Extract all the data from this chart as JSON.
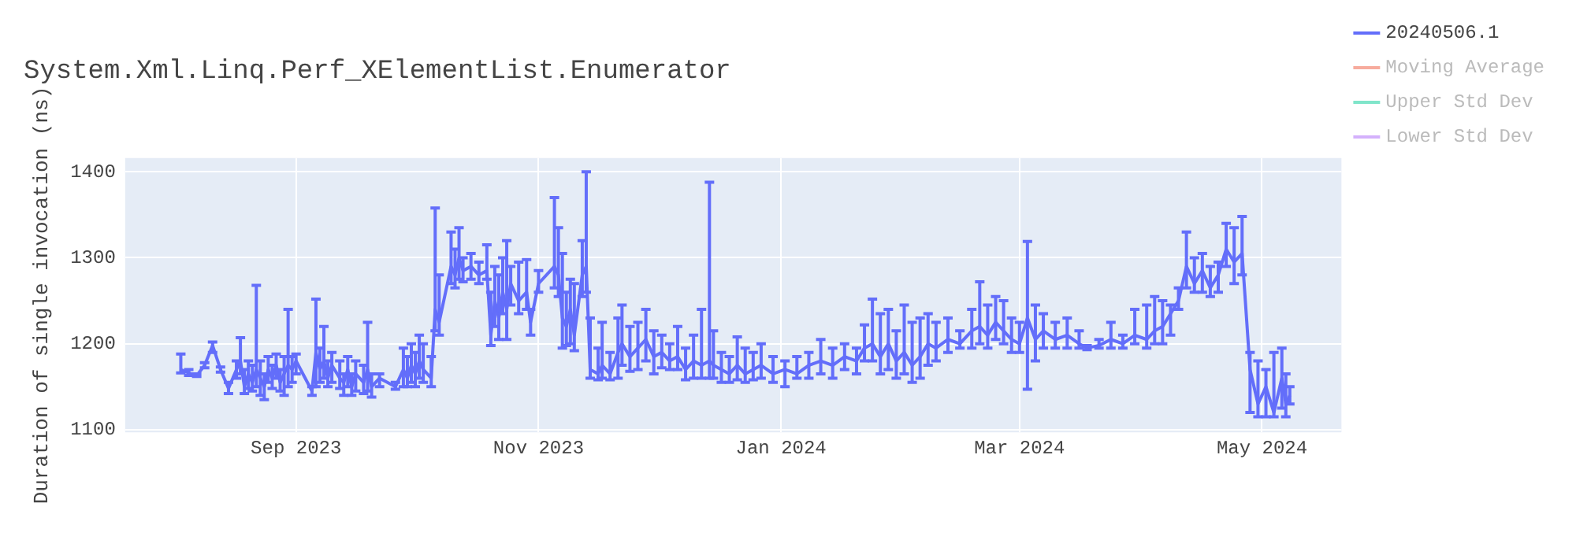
{
  "chart_data": {
    "type": "line",
    "title": "System.Xml.Linq.Perf_XElementList.Enumerator",
    "ylabel": "Duration of single invocation (ns)",
    "x": [
      "2023-08-03",
      "2023-08-05",
      "2023-08-07",
      "2023-08-09",
      "2023-08-11",
      "2023-08-13",
      "2023-08-15",
      "2023-08-17",
      "2023-08-18",
      "2023-08-19",
      "2023-08-20",
      "2023-08-21",
      "2023-08-22",
      "2023-08-23",
      "2023-08-24",
      "2023-08-25",
      "2023-08-26",
      "2023-08-27",
      "2023-08-28",
      "2023-08-29",
      "2023-08-30",
      "2023-08-31",
      "2023-09-01",
      "2023-09-05",
      "2023-09-06",
      "2023-09-07",
      "2023-09-08",
      "2023-09-09",
      "2023-09-10",
      "2023-09-12",
      "2023-09-13",
      "2023-09-14",
      "2023-09-15",
      "2023-09-16",
      "2023-09-18",
      "2023-09-19",
      "2023-09-20",
      "2023-09-22",
      "2023-09-26",
      "2023-09-28",
      "2023-09-29",
      "2023-09-30",
      "2023-10-01",
      "2023-10-02",
      "2023-10-03",
      "2023-10-05",
      "2023-10-06",
      "2023-10-07",
      "2023-10-10",
      "2023-10-11",
      "2023-10-12",
      "2023-10-13",
      "2023-10-15",
      "2023-10-17",
      "2023-10-19",
      "2023-10-20",
      "2023-10-21",
      "2023-10-22",
      "2023-10-23",
      "2023-10-24",
      "2023-10-25",
      "2023-10-27",
      "2023-10-29",
      "2023-10-30",
      "2023-11-01",
      "2023-11-05",
      "2023-11-06",
      "2023-11-07",
      "2023-11-08",
      "2023-11-09",
      "2023-11-10",
      "2023-11-12",
      "2023-11-13",
      "2023-11-14",
      "2023-11-16",
      "2023-11-17",
      "2023-11-19",
      "2023-11-21",
      "2023-11-22",
      "2023-11-24",
      "2023-11-26",
      "2023-11-28",
      "2023-11-30",
      "2023-12-02",
      "2023-12-04",
      "2023-12-06",
      "2023-12-08",
      "2023-12-10",
      "2023-12-12",
      "2023-12-14",
      "2023-12-15",
      "2023-12-17",
      "2023-12-19",
      "2023-12-21",
      "2023-12-23",
      "2023-12-25",
      "2023-12-27",
      "2023-12-30",
      "2024-01-02",
      "2024-01-05",
      "2024-01-08",
      "2024-01-11",
      "2024-01-14",
      "2024-01-17",
      "2024-01-20",
      "2024-01-22",
      "2024-01-24",
      "2024-01-26",
      "2024-01-28",
      "2024-01-30",
      "2024-02-01",
      "2024-02-03",
      "2024-02-05",
      "2024-02-07",
      "2024-02-09",
      "2024-02-12",
      "2024-02-15",
      "2024-02-18",
      "2024-02-20",
      "2024-02-22",
      "2024-02-24",
      "2024-02-26",
      "2024-02-28",
      "2024-03-01",
      "2024-03-03",
      "2024-03-05",
      "2024-03-07",
      "2024-03-10",
      "2024-03-13",
      "2024-03-16",
      "2024-03-18",
      "2024-03-21",
      "2024-03-24",
      "2024-03-27",
      "2024-03-30",
      "2024-04-02",
      "2024-04-04",
      "2024-04-06",
      "2024-04-08",
      "2024-04-10",
      "2024-04-12",
      "2024-04-14",
      "2024-04-16",
      "2024-04-18",
      "2024-04-20",
      "2024-04-22",
      "2024-04-24",
      "2024-04-26",
      "2024-04-28",
      "2024-04-30",
      "2024-05-02",
      "2024-05-04",
      "2024-05-06",
      "2024-05-07",
      "2024-05-08"
    ],
    "series": [
      {
        "name": "20240506.1",
        "color": "#636efa",
        "values": [
          1170,
          1166,
          1163,
          1175,
          1198,
          1170,
          1148,
          1170,
          1180,
          1150,
          1165,
          1155,
          1170,
          1160,
          1150,
          1170,
          1160,
          1175,
          1155,
          1165,
          1175,
          1170,
          1180,
          1145,
          1190,
          1170,
          1180,
          1160,
          1175,
          1160,
          1155,
          1170,
          1150,
          1165,
          1155,
          1170,
          1150,
          1160,
          1150,
          1170,
          1160,
          1175,
          1165,
          1180,
          1170,
          1160,
          1240,
          1225,
          1290,
          1280,
          1300,
          1285,
          1290,
          1280,
          1285,
          1210,
          1250,
          1230,
          1260,
          1240,
          1270,
          1250,
          1260,
          1225,
          1270,
          1290,
          1280,
          1230,
          1220,
          1240,
          1210,
          1280,
          1290,
          1170,
          1165,
          1175,
          1165,
          1190,
          1200,
          1185,
          1195,
          1205,
          1185,
          1190,
          1180,
          1185,
          1170,
          1180,
          1175,
          1180,
          1175,
          1170,
          1165,
          1175,
          1165,
          1170,
          1175,
          1165,
          1170,
          1165,
          1175,
          1180,
          1175,
          1185,
          1180,
          1195,
          1200,
          1185,
          1200,
          1180,
          1190,
          1175,
          1185,
          1200,
          1195,
          1205,
          1200,
          1215,
          1220,
          1210,
          1225,
          1215,
          1205,
          1200,
          1230,
          1205,
          1215,
          1205,
          1210,
          1200,
          1195,
          1198,
          1205,
          1200,
          1210,
          1205,
          1215,
          1220,
          1235,
          1250,
          1290,
          1270,
          1285,
          1265,
          1280,
          1310,
          1295,
          1305,
          1170,
          1130,
          1150,
          1120,
          1160,
          1130,
          1140
        ],
        "errors": [
          [
            1166,
            1188
          ],
          [
            1163,
            1170
          ],
          [
            1162,
            1165
          ],
          [
            1172,
            1178
          ],
          [
            1190,
            1202
          ],
          [
            1167,
            1173
          ],
          [
            1142,
            1155
          ],
          [
            1160,
            1180
          ],
          [
            1165,
            1207
          ],
          [
            1142,
            1170
          ],
          [
            1148,
            1180
          ],
          [
            1145,
            1175
          ],
          [
            1150,
            1268
          ],
          [
            1140,
            1180
          ],
          [
            1135,
            1165
          ],
          [
            1155,
            1185
          ],
          [
            1148,
            1175
          ],
          [
            1160,
            1188
          ],
          [
            1145,
            1170
          ],
          [
            1140,
            1185
          ],
          [
            1150,
            1240
          ],
          [
            1155,
            1185
          ],
          [
            1165,
            1188
          ],
          [
            1140,
            1150
          ],
          [
            1150,
            1252
          ],
          [
            1155,
            1195
          ],
          [
            1160,
            1220
          ],
          [
            1150,
            1180
          ],
          [
            1155,
            1190
          ],
          [
            1148,
            1180
          ],
          [
            1140,
            1165
          ],
          [
            1150,
            1185
          ],
          [
            1140,
            1165
          ],
          [
            1145,
            1180
          ],
          [
            1142,
            1175
          ],
          [
            1145,
            1225
          ],
          [
            1138,
            1165
          ],
          [
            1150,
            1165
          ],
          [
            1147,
            1155
          ],
          [
            1150,
            1195
          ],
          [
            1150,
            1185
          ],
          [
            1155,
            1200
          ],
          [
            1150,
            1190
          ],
          [
            1160,
            1210
          ],
          [
            1155,
            1200
          ],
          [
            1150,
            1185
          ],
          [
            1215,
            1358
          ],
          [
            1210,
            1280
          ],
          [
            1270,
            1330
          ],
          [
            1265,
            1310
          ],
          [
            1275,
            1335
          ],
          [
            1272,
            1300
          ],
          [
            1275,
            1305
          ],
          [
            1270,
            1295
          ],
          [
            1275,
            1315
          ],
          [
            1198,
            1260
          ],
          [
            1220,
            1290
          ],
          [
            1205,
            1280
          ],
          [
            1235,
            1300
          ],
          [
            1205,
            1320
          ],
          [
            1245,
            1290
          ],
          [
            1235,
            1295
          ],
          [
            1240,
            1298
          ],
          [
            1210,
            1240
          ],
          [
            1260,
            1285
          ],
          [
            1265,
            1370
          ],
          [
            1255,
            1335
          ],
          [
            1195,
            1305
          ],
          [
            1198,
            1260
          ],
          [
            1200,
            1275
          ],
          [
            1192,
            1270
          ],
          [
            1255,
            1320
          ],
          [
            1260,
            1400
          ],
          [
            1160,
            1230
          ],
          [
            1158,
            1195
          ],
          [
            1160,
            1225
          ],
          [
            1158,
            1190
          ],
          [
            1160,
            1230
          ],
          [
            1175,
            1245
          ],
          [
            1168,
            1220
          ],
          [
            1170,
            1225
          ],
          [
            1180,
            1240
          ],
          [
            1165,
            1215
          ],
          [
            1172,
            1210
          ],
          [
            1170,
            1200
          ],
          [
            1170,
            1220
          ],
          [
            1158,
            1195
          ],
          [
            1160,
            1210
          ],
          [
            1160,
            1240
          ],
          [
            1160,
            1388
          ],
          [
            1160,
            1215
          ],
          [
            1155,
            1190
          ],
          [
            1155,
            1185
          ],
          [
            1158,
            1208
          ],
          [
            1155,
            1195
          ],
          [
            1158,
            1190
          ],
          [
            1160,
            1200
          ],
          [
            1155,
            1185
          ],
          [
            1150,
            1180
          ],
          [
            1160,
            1185
          ],
          [
            1160,
            1190
          ],
          [
            1165,
            1205
          ],
          [
            1160,
            1195
          ],
          [
            1170,
            1200
          ],
          [
            1165,
            1195
          ],
          [
            1180,
            1222
          ],
          [
            1180,
            1252
          ],
          [
            1165,
            1235
          ],
          [
            1170,
            1240
          ],
          [
            1160,
            1215
          ],
          [
            1165,
            1245
          ],
          [
            1155,
            1225
          ],
          [
            1160,
            1230
          ],
          [
            1175,
            1235
          ],
          [
            1180,
            1225
          ],
          [
            1190,
            1230
          ],
          [
            1195,
            1215
          ],
          [
            1195,
            1240
          ],
          [
            1200,
            1272
          ],
          [
            1195,
            1245
          ],
          [
            1205,
            1255
          ],
          [
            1200,
            1250
          ],
          [
            1190,
            1230
          ],
          [
            1190,
            1225
          ],
          [
            1147,
            1319
          ],
          [
            1180,
            1245
          ],
          [
            1195,
            1235
          ],
          [
            1195,
            1225
          ],
          [
            1195,
            1230
          ],
          [
            1195,
            1215
          ],
          [
            1193,
            1198
          ],
          [
            1195,
            1205
          ],
          [
            1195,
            1225
          ],
          [
            1195,
            1210
          ],
          [
            1200,
            1240
          ],
          [
            1195,
            1245
          ],
          [
            1200,
            1255
          ],
          [
            1200,
            1250
          ],
          [
            1210,
            1245
          ],
          [
            1240,
            1265
          ],
          [
            1265,
            1330
          ],
          [
            1260,
            1300
          ],
          [
            1260,
            1305
          ],
          [
            1255,
            1290
          ],
          [
            1260,
            1295
          ],
          [
            1290,
            1340
          ],
          [
            1270,
            1335
          ],
          [
            1280,
            1348
          ],
          [
            1120,
            1190
          ],
          [
            1115,
            1180
          ],
          [
            1115,
            1170
          ],
          [
            1115,
            1190
          ],
          [
            1125,
            1195
          ],
          [
            1115,
            1165
          ],
          [
            1130,
            1150
          ]
        ]
      },
      {
        "name": "Moving Average",
        "color": "#f7ab9d",
        "values": [
          null,
          null,
          null,
          null,
          null,
          null,
          null,
          null,
          null,
          null,
          null,
          null,
          null,
          null,
          null,
          null,
          null,
          null,
          null,
          null,
          null,
          null,
          null,
          null,
          null,
          null,
          null,
          null,
          null,
          null,
          null,
          null,
          null,
          null,
          null,
          null,
          null,
          null,
          null,
          null,
          null,
          null,
          null,
          null,
          null,
          null,
          null,
          null,
          null,
          null,
          null,
          null,
          null,
          null,
          null,
          null,
          null,
          null,
          null,
          null,
          null,
          null,
          null,
          null,
          null,
          null,
          null,
          null,
          null,
          null,
          null,
          null,
          null,
          null,
          null,
          null,
          null,
          null,
          null,
          null,
          null,
          null,
          null,
          null,
          null,
          null,
          null,
          null,
          null,
          null,
          null,
          null,
          null,
          null,
          null,
          null,
          null,
          null,
          null,
          null,
          null,
          null,
          null,
          null,
          null,
          null,
          null,
          null,
          null,
          null,
          null,
          null,
          null,
          null,
          null,
          null,
          null,
          null,
          null,
          null,
          null,
          null,
          null,
          null,
          null,
          null,
          null,
          null,
          null,
          null,
          null,
          null,
          null,
          null,
          null,
          null,
          null,
          null,
          null,
          null,
          null,
          null,
          null,
          null,
          null,
          null,
          null,
          null,
          null,
          null,
          null,
          null,
          null,
          null,
          null
        ]
      },
      {
        "name": "Upper Std Dev",
        "color": "#80e5ca",
        "values": [
          null,
          null,
          null,
          null,
          null,
          null,
          null,
          null,
          null,
          null,
          null,
          null,
          null,
          null,
          null,
          null,
          null,
          null,
          null,
          null,
          null,
          null,
          null,
          null,
          null,
          null,
          null,
          null,
          null,
          null,
          null,
          null,
          null,
          null,
          null,
          null,
          null,
          null,
          null,
          null,
          null,
          null,
          null,
          null,
          null,
          null,
          null,
          null,
          null,
          null,
          null,
          null,
          null,
          null,
          null,
          null,
          null,
          null,
          null,
          null,
          null,
          null,
          null,
          null,
          null,
          null,
          null,
          null,
          null,
          null,
          null,
          null,
          null,
          null,
          null,
          null,
          null,
          null,
          null,
          null,
          null,
          null,
          null,
          null,
          null,
          null,
          null,
          null,
          null,
          null,
          null,
          null,
          null,
          null,
          null,
          null,
          null,
          null,
          null,
          null,
          null,
          null,
          null,
          null,
          null,
          null,
          null,
          null,
          null,
          null,
          null,
          null,
          null,
          null,
          null,
          null,
          null,
          null,
          null,
          null,
          null,
          null,
          null,
          null,
          null,
          null,
          null,
          null,
          null,
          null,
          null,
          null,
          null,
          null,
          null,
          null,
          null,
          null,
          null,
          null,
          null,
          null,
          null,
          null,
          null,
          null,
          null,
          null,
          null,
          null,
          null,
          null,
          null,
          null,
          null
        ]
      },
      {
        "name": "Lower Std Dev",
        "color": "#d4b1fc",
        "values": [
          null,
          null,
          null,
          null,
          null,
          null,
          null,
          null,
          null,
          null,
          null,
          null,
          null,
          null,
          null,
          null,
          null,
          null,
          null,
          null,
          null,
          null,
          null,
          null,
          null,
          null,
          null,
          null,
          null,
          null,
          null,
          null,
          null,
          null,
          null,
          null,
          null,
          null,
          null,
          null,
          null,
          null,
          null,
          null,
          null,
          null,
          null,
          null,
          null,
          null,
          null,
          null,
          null,
          null,
          null,
          null,
          null,
          null,
          null,
          null,
          null,
          null,
          null,
          null,
          null,
          null,
          null,
          null,
          null,
          null,
          null,
          null,
          null,
          null,
          null,
          null,
          null,
          null,
          null,
          null,
          null,
          null,
          null,
          null,
          null,
          null,
          null,
          null,
          null,
          null,
          null,
          null,
          null,
          null,
          null,
          null,
          null,
          null,
          null,
          null,
          null,
          null,
          null,
          null,
          null,
          null,
          null,
          null,
          null,
          null,
          null,
          null,
          null,
          null,
          null,
          null,
          null,
          null,
          null,
          null,
          null,
          null,
          null,
          null,
          null,
          null,
          null,
          null,
          null,
          null,
          null,
          null,
          null,
          null,
          null,
          null,
          null,
          null,
          null,
          null,
          null,
          null,
          null,
          null,
          null,
          null,
          null,
          null,
          null,
          null,
          null,
          null,
          null,
          null,
          null
        ]
      }
    ],
    "xlim": [
      "2023-07-20",
      "2024-05-21"
    ],
    "xticks": [
      {
        "value": "2023-09-01",
        "label": "Sep 2023"
      },
      {
        "value": "2023-11-01",
        "label": "Nov 2023"
      },
      {
        "value": "2024-01-01",
        "label": "Jan 2024"
      },
      {
        "value": "2024-03-01",
        "label": "Mar 2024"
      },
      {
        "value": "2024-05-01",
        "label": "May 2024"
      }
    ],
    "ylim": [
      1097,
      1416
    ],
    "yticks": [
      1100,
      1200,
      1300,
      1400
    ],
    "grid": true,
    "legend": "top right",
    "marker": "none",
    "line_style": "solid"
  }
}
